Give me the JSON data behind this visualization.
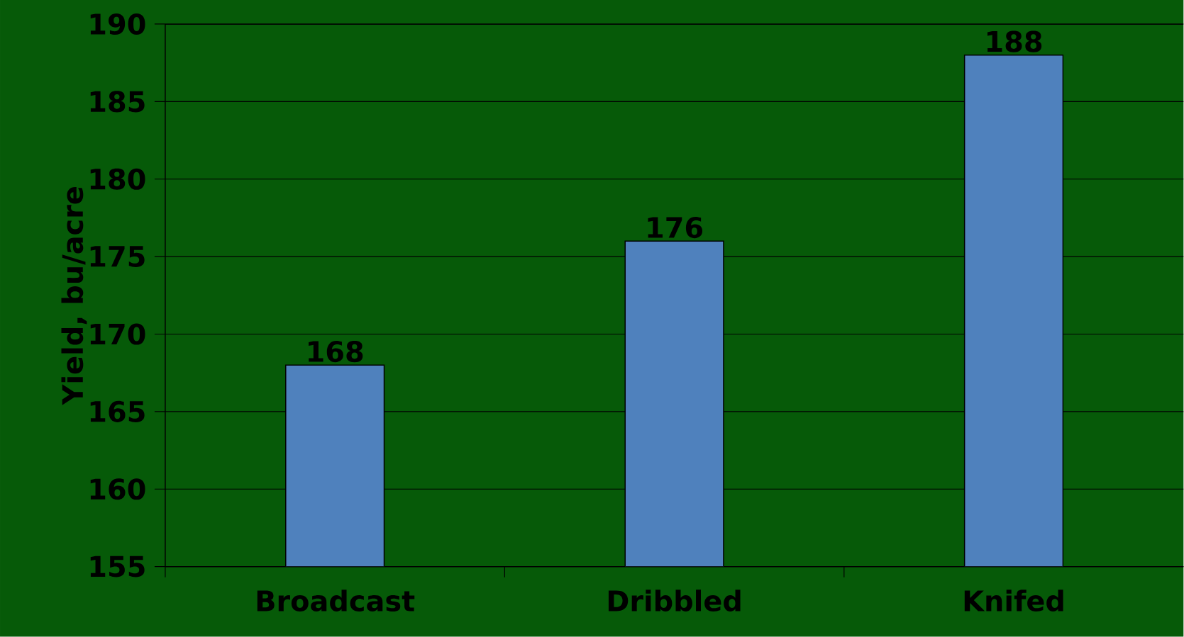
{
  "chart_data": {
    "type": "bar",
    "ylabel": "Yield, bu/acre",
    "categories": [
      "Broadcast",
      "Dribbled",
      "Knifed"
    ],
    "values": [
      168,
      176,
      188
    ],
    "color": "#4f81bd",
    "ylim": [
      155,
      190
    ],
    "yticks": [
      155,
      160,
      165,
      170,
      175,
      180,
      185,
      190
    ],
    "grid": "y",
    "data_labels": true
  }
}
